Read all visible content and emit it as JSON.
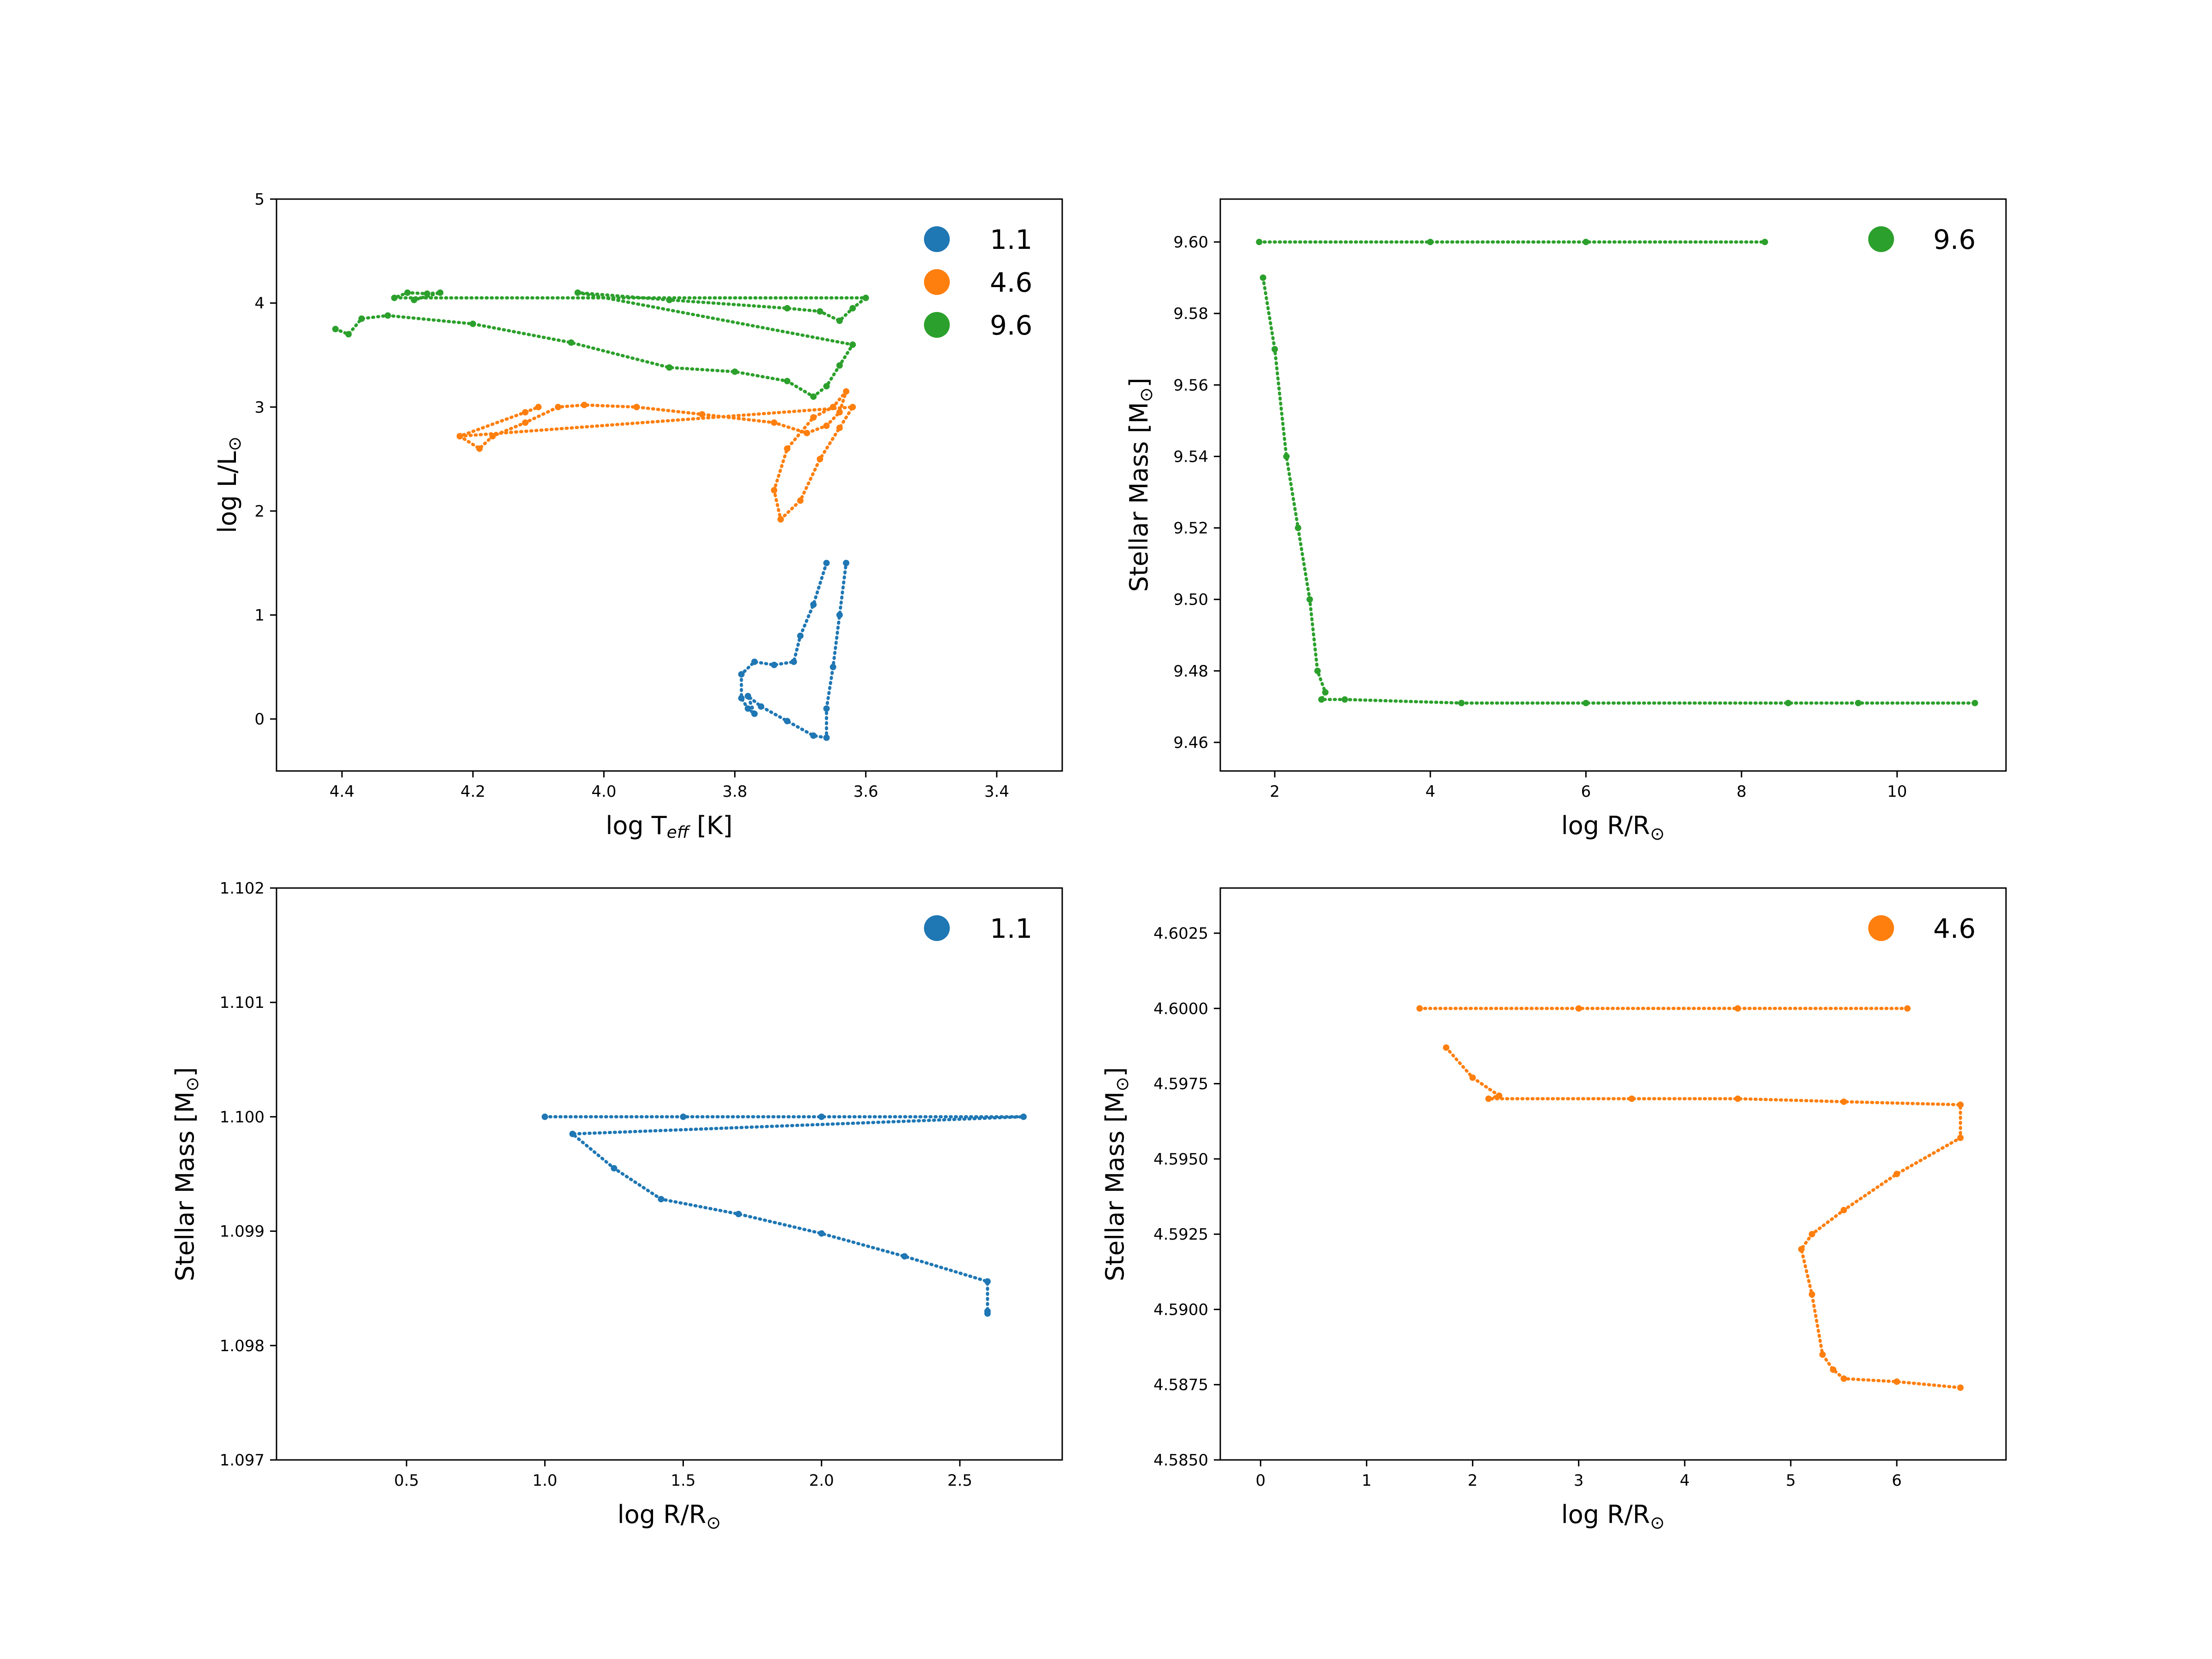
{
  "figure": {
    "panels": [
      {
        "id": "hr",
        "xlabel_main": "log T",
        "xlabel_sub": "eff",
        "xlabel_tail": " [K]",
        "ylabel_main": "log L/L",
        "ylabel_sym": "⊙",
        "xticks": [
          "4.4",
          "4.2",
          "4.0",
          "3.8",
          "3.6",
          "3.4"
        ],
        "yticks": [
          "0",
          "1",
          "2",
          "3",
          "4",
          "5"
        ],
        "legend": [
          "1.1",
          "4.6",
          "9.6"
        ]
      },
      {
        "id": "mass96",
        "xlabel_main": "log R/R",
        "xlabel_sym": "⊙",
        "ylabel_main": "Stellar Mass [M",
        "ylabel_sym": "⊙",
        "ylabel_tail": "]",
        "xticks": [
          "2",
          "4",
          "6",
          "8",
          "10"
        ],
        "yticks": [
          "9.46",
          "9.48",
          "9.50",
          "9.52",
          "9.54",
          "9.56",
          "9.58",
          "9.60"
        ],
        "legend": [
          "9.6"
        ]
      },
      {
        "id": "mass11",
        "xlabel_main": "log R/R",
        "xlabel_sym": "⊙",
        "ylabel_main": "Stellar Mass [M",
        "ylabel_sym": "⊙",
        "ylabel_tail": "]",
        "xticks": [
          "0.5",
          "1.0",
          "1.5",
          "2.0",
          "2.5"
        ],
        "yticks": [
          "1.097",
          "1.098",
          "1.099",
          "1.100",
          "1.101",
          "1.102"
        ],
        "legend": [
          "1.1"
        ]
      },
      {
        "id": "mass46",
        "xlabel_main": "log R/R",
        "xlabel_sym": "⊙",
        "ylabel_main": "Stellar Mass [M",
        "ylabel_sym": "⊙",
        "ylabel_tail": "]",
        "xticks": [
          "0",
          "1",
          "2",
          "3",
          "4",
          "5",
          "6"
        ],
        "yticks": [
          "4.5850",
          "4.5875",
          "4.5900",
          "4.5925",
          "4.5950",
          "4.5975",
          "4.6000",
          "4.6025"
        ],
        "legend": [
          "4.6"
        ]
      }
    ]
  },
  "chart_data": [
    {
      "type": "scatter",
      "xlabel": "log T_eff [K]",
      "ylabel": "log L/L⊙",
      "xlim": [
        4.5,
        3.3
      ],
      "ylim": [
        -0.5,
        5
      ],
      "xlim_reversed": true,
      "legend_position": "top-right",
      "series": [
        {
          "name": "1.1",
          "color": "#1f77b4",
          "points": [
            [
              3.66,
              1.5
            ],
            [
              3.68,
              1.1
            ],
            [
              3.7,
              0.8
            ],
            [
              3.71,
              0.55
            ],
            [
              3.74,
              0.52
            ],
            [
              3.77,
              0.55
            ],
            [
              3.79,
              0.43
            ],
            [
              3.79,
              0.2
            ],
            [
              3.78,
              0.1
            ],
            [
              3.77,
              0.05
            ],
            [
              3.78,
              0.22
            ],
            [
              3.76,
              0.12
            ],
            [
              3.72,
              -0.02
            ],
            [
              3.68,
              -0.16
            ],
            [
              3.66,
              -0.18
            ],
            [
              3.66,
              0.1
            ],
            [
              3.65,
              0.5
            ],
            [
              3.64,
              1.0
            ],
            [
              3.63,
              1.5
            ]
          ]
        },
        {
          "name": "4.6",
          "color": "#ff7f0e",
          "points": [
            [
              4.22,
              2.72
            ],
            [
              4.19,
              2.6
            ],
            [
              4.17,
              2.72
            ],
            [
              4.12,
              2.85
            ],
            [
              4.07,
              3.0
            ],
            [
              4.03,
              3.02
            ],
            [
              3.95,
              3.0
            ],
            [
              3.85,
              2.93
            ],
            [
              3.74,
              2.85
            ],
            [
              3.69,
              2.75
            ],
            [
              3.66,
              2.82
            ],
            [
              3.64,
              2.95
            ],
            [
              3.63,
              3.15
            ],
            [
              3.65,
              3.0
            ],
            [
              3.68,
              2.9
            ],
            [
              3.72,
              2.6
            ],
            [
              3.74,
              2.2
            ],
            [
              3.73,
              1.92
            ],
            [
              3.7,
              2.1
            ],
            [
              3.67,
              2.5
            ],
            [
              3.64,
              2.8
            ],
            [
              3.62,
              3.0
            ],
            [
              4.22,
              2.72
            ],
            [
              4.12,
              2.95
            ],
            [
              4.1,
              3.0
            ]
          ]
        },
        {
          "name": "9.6",
          "color": "#2ca02c",
          "points": [
            [
              4.41,
              3.75
            ],
            [
              4.39,
              3.7
            ],
            [
              4.37,
              3.85
            ],
            [
              4.33,
              3.88
            ],
            [
              4.2,
              3.8
            ],
            [
              4.05,
              3.62
            ],
            [
              3.9,
              3.38
            ],
            [
              3.8,
              3.34
            ],
            [
              3.72,
              3.25
            ],
            [
              3.68,
              3.1
            ],
            [
              3.66,
              3.2
            ],
            [
              3.64,
              3.4
            ],
            [
              3.62,
              3.6
            ],
            [
              4.04,
              4.1
            ],
            [
              3.9,
              4.03
            ],
            [
              3.72,
              3.95
            ],
            [
              3.67,
              3.92
            ],
            [
              3.64,
              3.83
            ],
            [
              3.62,
              3.95
            ],
            [
              3.6,
              4.05
            ],
            [
              4.32,
              4.05
            ],
            [
              4.3,
              4.1
            ],
            [
              4.27,
              4.09
            ],
            [
              4.25,
              4.1
            ],
            [
              4.29,
              4.03
            ]
          ]
        }
      ]
    },
    {
      "type": "scatter",
      "xlabel": "log R/R⊙",
      "ylabel": "Stellar Mass [M⊙]",
      "xlim": [
        1.3,
        11.4
      ],
      "ylim": [
        9.452,
        9.612
      ],
      "legend_position": "top-right",
      "series": [
        {
          "name": "9.6",
          "color": "#2ca02c",
          "points": [
            [
              1.8,
              9.6
            ],
            [
              4.0,
              9.6
            ],
            [
              6.0,
              9.6
            ],
            [
              8.3,
              9.6
            ],
            [
              1.85,
              9.59
            ],
            [
              2.0,
              9.57
            ],
            [
              2.15,
              9.54
            ],
            [
              2.3,
              9.52
            ],
            [
              2.45,
              9.5
            ],
            [
              2.55,
              9.48
            ],
            [
              2.65,
              9.474
            ],
            [
              2.6,
              9.472
            ],
            [
              2.9,
              9.472
            ],
            [
              4.4,
              9.471
            ],
            [
              6.0,
              9.471
            ],
            [
              8.6,
              9.471
            ],
            [
              9.5,
              9.471
            ],
            [
              11.0,
              9.471
            ]
          ]
        }
      ]
    },
    {
      "type": "scatter",
      "xlabel": "log R/R⊙",
      "ylabel": "Stellar Mass [M⊙]",
      "xlim": [
        0.03,
        2.87
      ],
      "ylim": [
        1.097,
        1.102
      ],
      "legend_position": "top-right",
      "series": [
        {
          "name": "1.1",
          "color": "#1f77b4",
          "points": [
            [
              1.0,
              1.1
            ],
            [
              1.5,
              1.1
            ],
            [
              2.0,
              1.1
            ],
            [
              2.73,
              1.1
            ],
            [
              1.1,
              1.09985
            ],
            [
              1.25,
              1.09955
            ],
            [
              1.42,
              1.09928
            ],
            [
              1.7,
              1.09915
            ],
            [
              2.0,
              1.09898
            ],
            [
              2.3,
              1.09878
            ],
            [
              2.6,
              1.09856
            ],
            [
              2.6,
              1.0983
            ],
            [
              2.6,
              1.09828
            ]
          ]
        }
      ]
    },
    {
      "type": "scatter",
      "xlabel": "log R/R⊙",
      "ylabel": "Stellar Mass [M⊙]",
      "xlim": [
        -0.38,
        7.03
      ],
      "ylim": [
        4.585,
        4.604
      ],
      "legend_position": "top-right",
      "series": [
        {
          "name": "4.6",
          "color": "#ff7f0e",
          "points": [
            [
              1.5,
              4.6
            ],
            [
              3.0,
              4.6
            ],
            [
              4.5,
              4.6
            ],
            [
              6.1,
              4.6
            ],
            [
              1.75,
              4.5987
            ],
            [
              2.0,
              4.5977
            ],
            [
              2.25,
              4.5971
            ],
            [
              2.15,
              4.597
            ],
            [
              3.5,
              4.597
            ],
            [
              4.5,
              4.597
            ],
            [
              5.5,
              4.5969
            ],
            [
              6.6,
              4.5968
            ],
            [
              6.6,
              4.5957
            ],
            [
              6.0,
              4.5945
            ],
            [
              5.5,
              4.5933
            ],
            [
              5.2,
              4.5925
            ],
            [
              5.1,
              4.592
            ],
            [
              5.2,
              4.5905
            ],
            [
              5.3,
              4.5885
            ],
            [
              5.4,
              4.588
            ],
            [
              5.5,
              4.5877
            ],
            [
              6.0,
              4.5876
            ],
            [
              6.6,
              4.5874
            ]
          ]
        }
      ]
    }
  ]
}
